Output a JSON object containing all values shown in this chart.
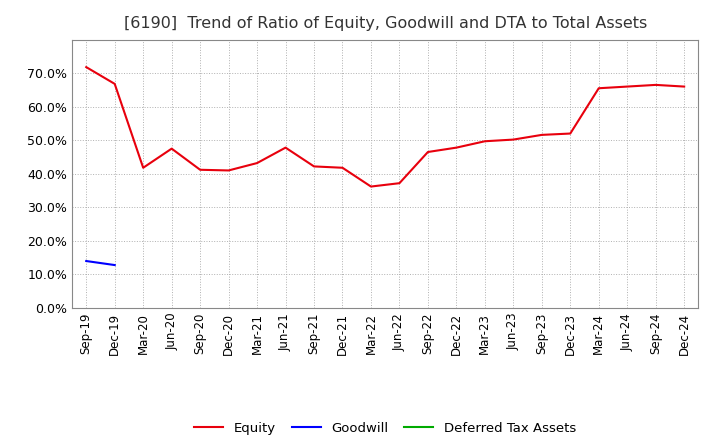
{
  "title": "[6190]  Trend of Ratio of Equity, Goodwill and DTA to Total Assets",
  "x_labels": [
    "Sep-19",
    "Dec-19",
    "Mar-20",
    "Jun-20",
    "Sep-20",
    "Dec-20",
    "Mar-21",
    "Jun-21",
    "Sep-21",
    "Dec-21",
    "Mar-22",
    "Jun-22",
    "Sep-22",
    "Dec-22",
    "Mar-23",
    "Jun-23",
    "Sep-23",
    "Dec-23",
    "Mar-24",
    "Jun-24",
    "Sep-24",
    "Dec-24"
  ],
  "equity": [
    0.718,
    0.668,
    0.418,
    0.475,
    0.412,
    0.41,
    0.432,
    0.478,
    0.422,
    0.418,
    0.362,
    0.372,
    0.465,
    0.478,
    0.497,
    0.502,
    0.516,
    0.52,
    0.655,
    0.66,
    0.665,
    0.66
  ],
  "goodwill": [
    0.14,
    0.128,
    null,
    null,
    null,
    null,
    null,
    null,
    null,
    null,
    null,
    null,
    null,
    null,
    null,
    null,
    null,
    null,
    null,
    null,
    null,
    null
  ],
  "dta": [
    null,
    null,
    null,
    null,
    null,
    null,
    null,
    null,
    null,
    null,
    null,
    null,
    null,
    null,
    null,
    null,
    null,
    null,
    null,
    null,
    null,
    null
  ],
  "equity_color": "#e8000d",
  "goodwill_color": "#0000ff",
  "dta_color": "#00aa00",
  "background_color": "#ffffff",
  "grid_color": "#b0b0b0",
  "ylim": [
    0.0,
    0.8
  ],
  "yticks": [
    0.0,
    0.1,
    0.2,
    0.3,
    0.4,
    0.5,
    0.6,
    0.7
  ],
  "title_fontsize": 11.5,
  "legend_labels": [
    "Equity",
    "Goodwill",
    "Deferred Tax Assets"
  ]
}
